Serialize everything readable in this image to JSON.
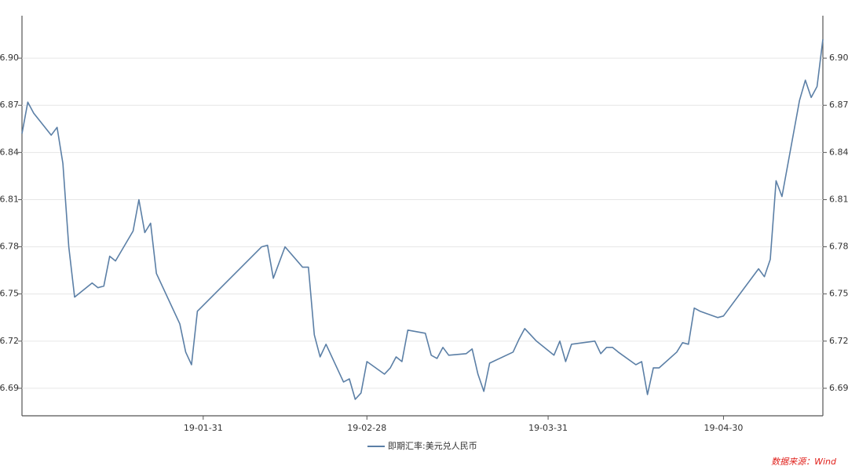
{
  "chart_data": {
    "type": "line",
    "x": [
      "18-12-31",
      "19-01-01",
      "19-01-02",
      "19-01-05",
      "19-01-06",
      "19-01-07",
      "19-01-08",
      "19-01-09",
      "19-01-12",
      "19-01-13",
      "19-01-14",
      "19-01-15",
      "19-01-16",
      "19-01-19",
      "19-01-20",
      "19-01-21",
      "19-01-22",
      "19-01-23",
      "19-01-27",
      "19-01-28",
      "19-01-29",
      "19-01-30",
      "19-02-10",
      "19-02-11",
      "19-02-12",
      "19-02-14",
      "19-02-17",
      "19-02-18",
      "19-02-19",
      "19-02-20",
      "19-02-21",
      "19-02-24",
      "19-02-25",
      "19-02-26",
      "19-02-27",
      "19-02-28",
      "19-03-03",
      "19-03-04",
      "19-03-05",
      "19-03-06",
      "19-03-07",
      "19-03-10",
      "19-03-11",
      "19-03-12",
      "19-03-13",
      "19-03-14",
      "19-03-17",
      "19-03-18",
      "19-03-19",
      "19-03-20",
      "19-03-21",
      "19-03-25",
      "19-03-26",
      "19-03-27",
      "19-03-29",
      "19-04-01",
      "19-04-02",
      "19-04-03",
      "19-04-04",
      "19-04-08",
      "19-04-09",
      "19-04-10",
      "19-04-11",
      "19-04-12",
      "19-04-15",
      "19-04-16",
      "19-04-17",
      "19-04-18",
      "19-04-19",
      "19-04-22",
      "19-04-23",
      "19-04-24",
      "19-04-25",
      "19-04-26",
      "19-04-29",
      "19-04-30",
      "19-05-06",
      "19-05-07",
      "19-05-08",
      "19-05-09",
      "19-05-10",
      "19-05-13",
      "19-05-14",
      "19-05-15",
      "19-05-16",
      "19-05-17"
    ],
    "series": [
      {
        "name": "即期汇率:美元兑人民币",
        "color": "#5b7fa6",
        "values": [
          6.852,
          6.872,
          6.865,
          6.851,
          6.856,
          6.833,
          6.78,
          6.748,
          6.757,
          6.754,
          6.755,
          6.774,
          6.771,
          6.79,
          6.81,
          6.789,
          6.795,
          6.763,
          6.731,
          6.713,
          6.705,
          6.739,
          6.78,
          6.781,
          6.76,
          6.78,
          6.767,
          6.767,
          6.724,
          6.71,
          6.718,
          6.694,
          6.696,
          6.683,
          6.687,
          6.707,
          6.699,
          6.703,
          6.71,
          6.707,
          6.727,
          6.725,
          6.711,
          6.709,
          6.716,
          6.711,
          6.712,
          6.715,
          6.699,
          6.688,
          6.706,
          6.713,
          6.721,
          6.728,
          6.72,
          6.711,
          6.72,
          6.707,
          6.718,
          6.72,
          6.712,
          6.716,
          6.716,
          6.713,
          6.705,
          6.707,
          6.686,
          6.703,
          6.703,
          6.713,
          6.719,
          6.718,
          6.741,
          6.739,
          6.735,
          6.736,
          6.766,
          6.761,
          6.772,
          6.822,
          6.812,
          6.873,
          6.886,
          6.875,
          6.882,
          6.912
        ]
      }
    ],
    "xlim": [
      "18-12-31",
      "19-05-17"
    ],
    "xticks": [
      "19-01-31",
      "19-02-28",
      "19-03-31",
      "19-04-30"
    ],
    "ylim": [
      6.6725,
      6.927
    ],
    "yticks": [
      6.69,
      6.72,
      6.75,
      6.78,
      6.81,
      6.84,
      6.87,
      {
        "value": 6.9,
        "label": "6.90"
      }
    ],
    "grid": true,
    "legend": "bottom",
    "source": "数据来源：Wind"
  }
}
